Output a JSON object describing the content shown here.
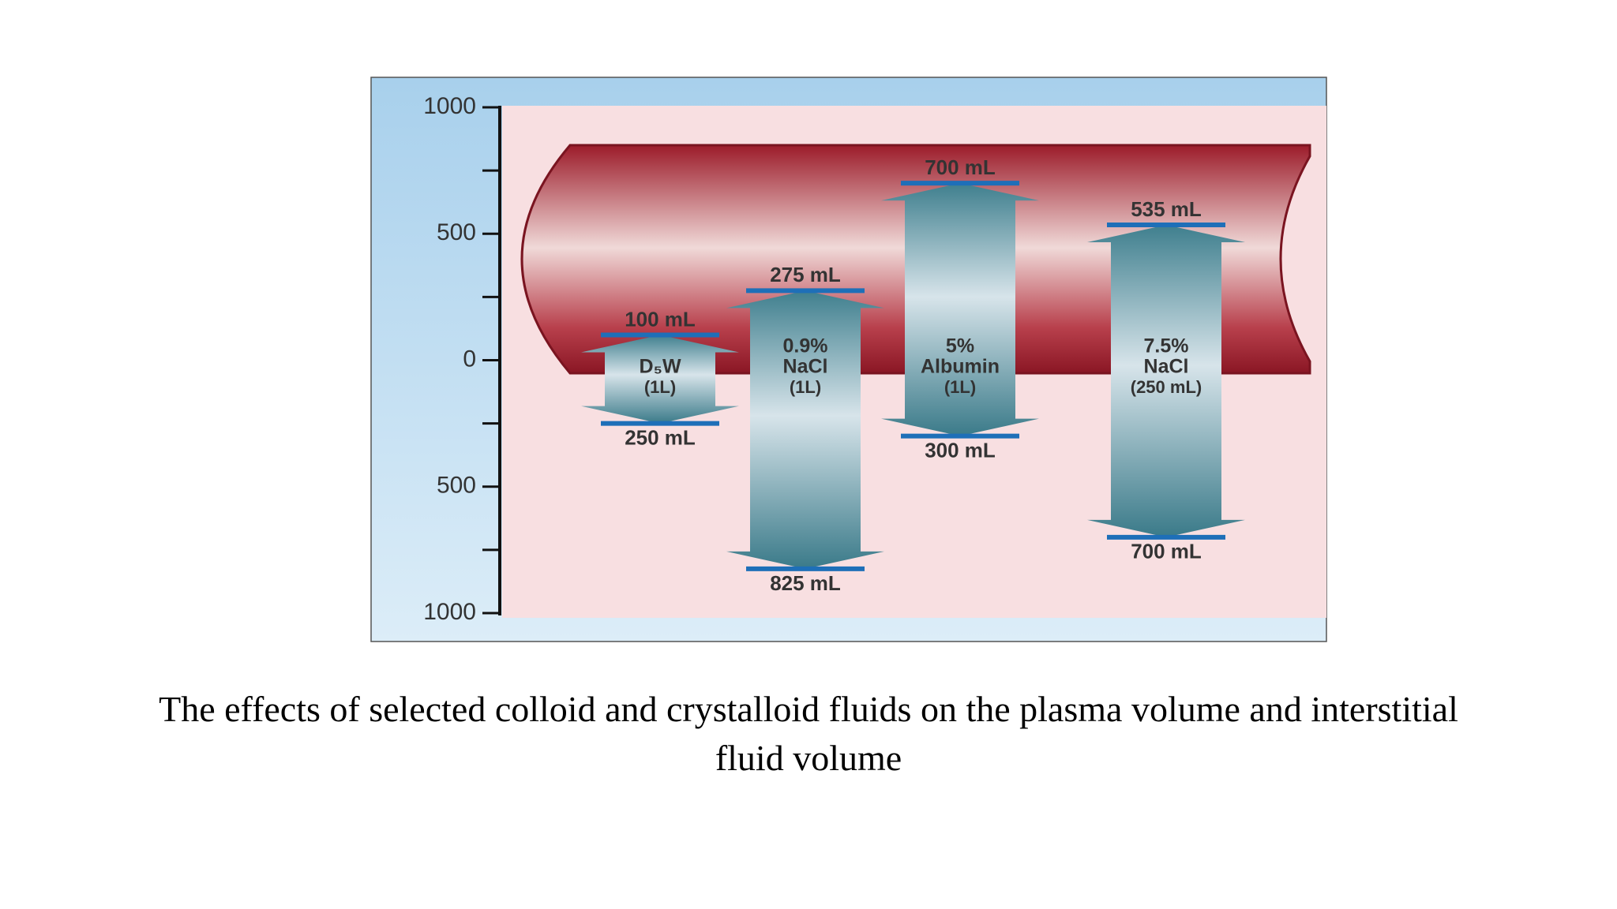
{
  "chart_data": {
    "type": "bar",
    "title": "The effects of selected colloid and crystalloid fluids on the plasma volume and interstitial fluid volume",
    "categories": [
      [
        "D₅W",
        "(1L)"
      ],
      [
        "0.9%",
        "NaCl",
        "(1L)"
      ],
      [
        "5%",
        "Albumin",
        "(1L)"
      ],
      [
        "7.5%",
        "NaCl",
        "(250 mL)"
      ]
    ],
    "series": [
      {
        "color": "#1e6fb8",
        "values": [
          100,
          275,
          700,
          535
        ],
        "value_labels": [
          "100 mL",
          "275 mL",
          "700 mL",
          "535 mL"
        ]
      },
      {
        "color": "#1e6fb8",
        "values": [
          -250,
          -825,
          -300,
          -700
        ],
        "value_labels": [
          "250 mL",
          "825 mL",
          "300 mL",
          "700 mL"
        ]
      }
    ],
    "ylim": [
      -1000,
      1000
    ],
    "yticks": [
      {
        "value": -1000,
        "label": "1000"
      },
      {
        "value": -500,
        "label": "500"
      },
      0,
      500,
      1000
    ],
    "yminor": [
      -750,
      -250,
      250,
      750
    ]
  }
}
